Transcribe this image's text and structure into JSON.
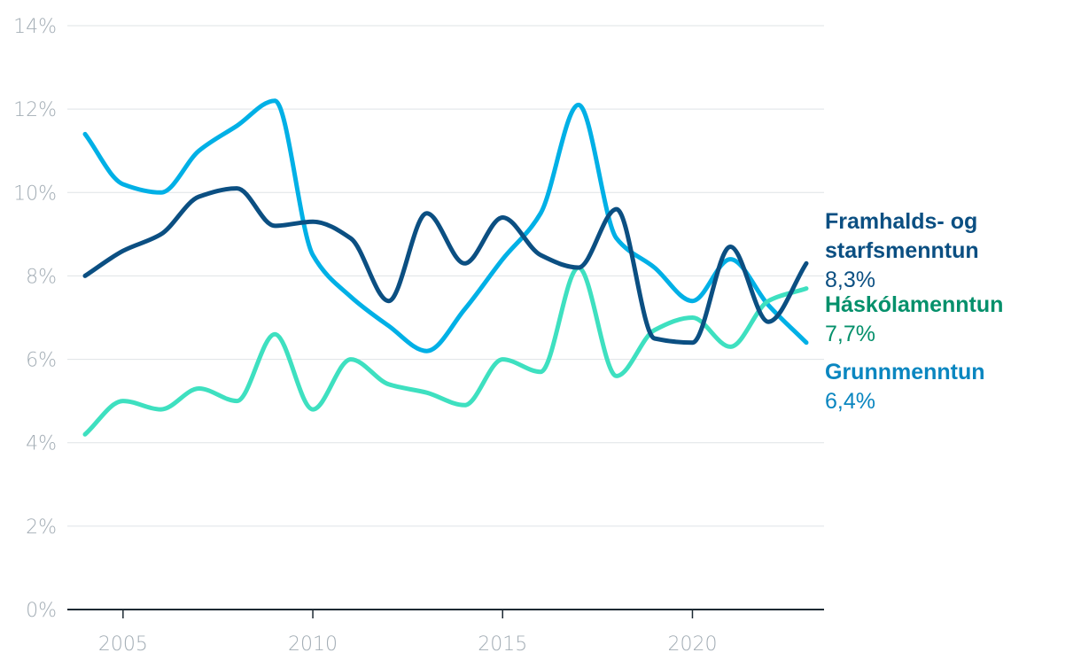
{
  "chart_data": {
    "type": "line",
    "x": [
      2004,
      2005,
      2006,
      2007,
      2008,
      2009,
      2010,
      2011,
      2012,
      2013,
      2014,
      2015,
      2016,
      2017,
      2018,
      2019,
      2020,
      2021,
      2022,
      2023
    ],
    "xticks": [
      "2005",
      "2010",
      "2015",
      "2020"
    ],
    "yticks": [
      "0%",
      "2%",
      "4%",
      "6%",
      "8%",
      "10%",
      "12%",
      "14%"
    ],
    "ylim": [
      0,
      14
    ],
    "grid": true,
    "series": [
      {
        "name": "Grunnmenntun",
        "end_label": "6,4%",
        "color": "#00b0e6",
        "label_color": "#0a86c0",
        "values": [
          11.4,
          10.2,
          10.0,
          11.0,
          11.6,
          12.2,
          8.5,
          7.5,
          6.8,
          6.2,
          7.2,
          8.4,
          9.5,
          12.1,
          8.9,
          8.2,
          7.4,
          8.4,
          7.3,
          6.4
        ]
      },
      {
        "name": "Framhalds- og starfsmenntun",
        "name_lines": [
          "Framhalds- og",
          "starfsmenntun"
        ],
        "end_label": "8,3%",
        "color": "#0b4f82",
        "label_color": "#0b4f82",
        "values": [
          8.0,
          8.6,
          9.0,
          9.9,
          10.1,
          9.2,
          9.3,
          8.9,
          7.4,
          9.5,
          8.3,
          9.4,
          8.5,
          8.2,
          9.6,
          6.5,
          6.4,
          8.7,
          6.9,
          8.3
        ]
      },
      {
        "name": "Háskólamenntun",
        "end_label": "7,7%",
        "color": "#3ee0c0",
        "label_color": "#05906b",
        "values": [
          4.2,
          5.0,
          4.8,
          5.3,
          5.0,
          6.6,
          4.8,
          6.0,
          5.4,
          5.2,
          4.9,
          6.0,
          5.7,
          8.2,
          5.6,
          6.7,
          7.0,
          6.3,
          7.4,
          7.7
        ]
      }
    ]
  }
}
